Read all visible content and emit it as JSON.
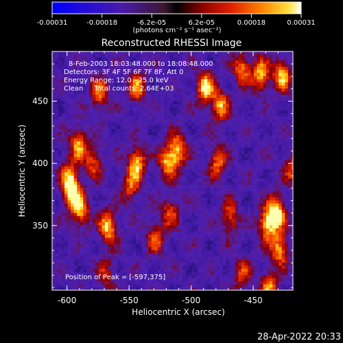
{
  "chart_data": {
    "type": "heatmap",
    "title": "Reconstructed RHESSI Image",
    "xlabel": "Heliocentric X (arcsec)",
    "ylabel": "Heliocentric Y (arcsec)",
    "xlim": [
      -612,
      -418
    ],
    "ylim": [
      298,
      490
    ],
    "x_ticks": [
      -600,
      -550,
      -500,
      -450
    ],
    "y_ticks": [
      350,
      400,
      450
    ],
    "colorbar": {
      "min": -0.00031,
      "max": 0.00031,
      "tick_labels": [
        "-0.00031",
        "-0.00018",
        "-6.2e-05",
        "6.2e-05",
        "0.00018",
        "0.00031"
      ],
      "unit_label": "(photons cm⁻² s⁻¹ asec⁻²)"
    },
    "annotations": [
      "8-Feb-2003 18:03:48.000 to 18:08:48.000",
      "Detectors: 3F 4F 5F 6F 7F 8F, Att 0",
      "Energy Range: 12.0 - 25.0 keV",
      "Clean     Total counts: 2.64E+03"
    ],
    "peak_label": "Position of Peak = [-597,375]",
    "peak_position": [
      -597,
      375
    ],
    "sources": [
      {
        "x": -597,
        "y": 375,
        "v": 1.0
      },
      {
        "x": -590,
        "y": 360,
        "v": 0.75
      },
      {
        "x": -592,
        "y": 415,
        "v": 0.78
      },
      {
        "x": -600,
        "y": 390,
        "v": 0.65
      },
      {
        "x": -575,
        "y": 455,
        "v": 0.7
      },
      {
        "x": -580,
        "y": 400,
        "v": 0.6
      },
      {
        "x": -568,
        "y": 348,
        "v": 0.92
      },
      {
        "x": -545,
        "y": 460,
        "v": 0.72
      },
      {
        "x": -545,
        "y": 400,
        "v": 0.88
      },
      {
        "x": -550,
        "y": 380,
        "v": 0.6
      },
      {
        "x": -530,
        "y": 340,
        "v": 0.62
      },
      {
        "x": -520,
        "y": 400,
        "v": 0.82
      },
      {
        "x": -512,
        "y": 410,
        "v": 0.8
      },
      {
        "x": -518,
        "y": 360,
        "v": 0.58
      },
      {
        "x": -490,
        "y": 460,
        "v": 0.92
      },
      {
        "x": -478,
        "y": 445,
        "v": 0.8
      },
      {
        "x": -480,
        "y": 400,
        "v": 0.68
      },
      {
        "x": -470,
        "y": 355,
        "v": 0.65
      },
      {
        "x": -460,
        "y": 475,
        "v": 0.75
      },
      {
        "x": -445,
        "y": 470,
        "v": 0.85
      },
      {
        "x": -428,
        "y": 470,
        "v": 0.88
      },
      {
        "x": -440,
        "y": 350,
        "v": 0.92
      },
      {
        "x": -432,
        "y": 360,
        "v": 0.98
      },
      {
        "x": -430,
        "y": 330,
        "v": 0.85
      },
      {
        "x": -438,
        "y": 300,
        "v": 0.7
      },
      {
        "x": -460,
        "y": 310,
        "v": 0.55
      },
      {
        "x": -420,
        "y": 395,
        "v": 0.55
      },
      {
        "x": -570,
        "y": 310,
        "v": 0.45
      }
    ]
  },
  "footer": {
    "timestamp": "28-Apr-2022 20:33"
  }
}
